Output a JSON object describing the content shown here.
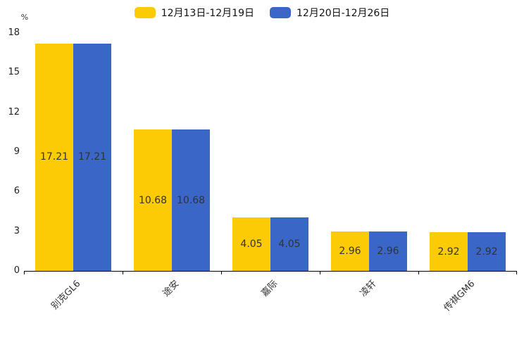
{
  "chart_data": {
    "type": "bar",
    "title": "",
    "categories": [
      "别克GL6",
      "途安",
      "嘉际",
      "凌轩",
      "传祺GM6"
    ],
    "series": [
      {
        "name": "12月13日-12月19日",
        "color": "#FDCB05",
        "values": [
          17.21,
          10.68,
          4.05,
          2.96,
          2.92
        ]
      },
      {
        "name": "12月20日-12月26日",
        "color": "#3A66C8",
        "values": [
          17.21,
          10.68,
          4.05,
          2.96,
          2.92
        ]
      }
    ],
    "xlabel": "",
    "ylabel": "%",
    "ylim": [
      0,
      18
    ],
    "yticks": [
      0,
      3,
      6,
      9,
      12,
      15,
      18
    ],
    "grid": false,
    "legend_position": "top",
    "bar_label_decimals": 2,
    "bar_label_color": "#333333",
    "axis_color": "#000000"
  }
}
